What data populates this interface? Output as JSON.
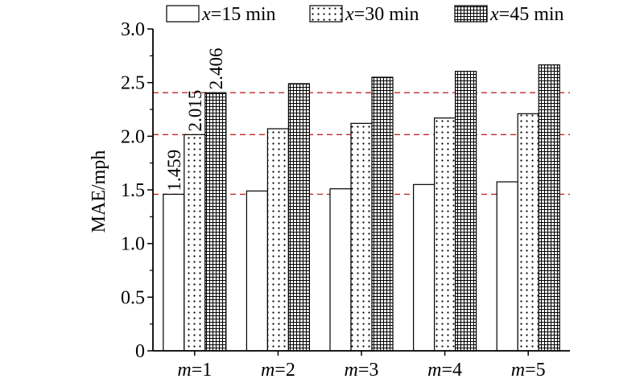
{
  "chart_data": {
    "type": "bar",
    "categories": [
      "m=1",
      "m=2",
      "m=3",
      "m=4",
      "m=5"
    ],
    "category_labels": [
      {
        "var": "m",
        "rest": "=1"
      },
      {
        "var": "m",
        "rest": "=2"
      },
      {
        "var": "m",
        "rest": "=3"
      },
      {
        "var": "m",
        "rest": "=4"
      },
      {
        "var": "m",
        "rest": "=5"
      }
    ],
    "series": [
      {
        "name": "x=15 min",
        "legend_var": "x",
        "legend_rest": "=15 min",
        "pattern": "none",
        "values": [
          1.459,
          1.49,
          1.51,
          1.55,
          1.575
        ]
      },
      {
        "name": "x=30 min",
        "legend_var": "x",
        "legend_rest": "=30 min",
        "pattern": "dots",
        "values": [
          2.015,
          2.07,
          2.12,
          2.17,
          2.21
        ]
      },
      {
        "name": "x=45 min",
        "legend_var": "x",
        "legend_rest": "=45 min",
        "pattern": "grid",
        "values": [
          2.406,
          2.49,
          2.55,
          2.605,
          2.665
        ]
      }
    ],
    "data_labels": [
      {
        "category": 0,
        "series": 0,
        "text": "1.459"
      },
      {
        "category": 0,
        "series": 1,
        "text": "2.015"
      },
      {
        "category": 0,
        "series": 2,
        "text": "2.406"
      }
    ],
    "reference_lines": [
      1.459,
      2.015,
      2.406
    ],
    "reference_line_color": "#c0282a",
    "ylabel": "MAE/mph",
    "xlabel": "",
    "ylim": [
      0,
      3.0
    ],
    "yticks": [
      "0",
      "0.5",
      "1.0",
      "1.5",
      "2.0",
      "2.5",
      "3.0"
    ],
    "ytick_values": [
      0,
      0.5,
      1.0,
      1.5,
      2.0,
      2.5,
      3.0
    ],
    "legend_position": "top",
    "grid": false
  }
}
